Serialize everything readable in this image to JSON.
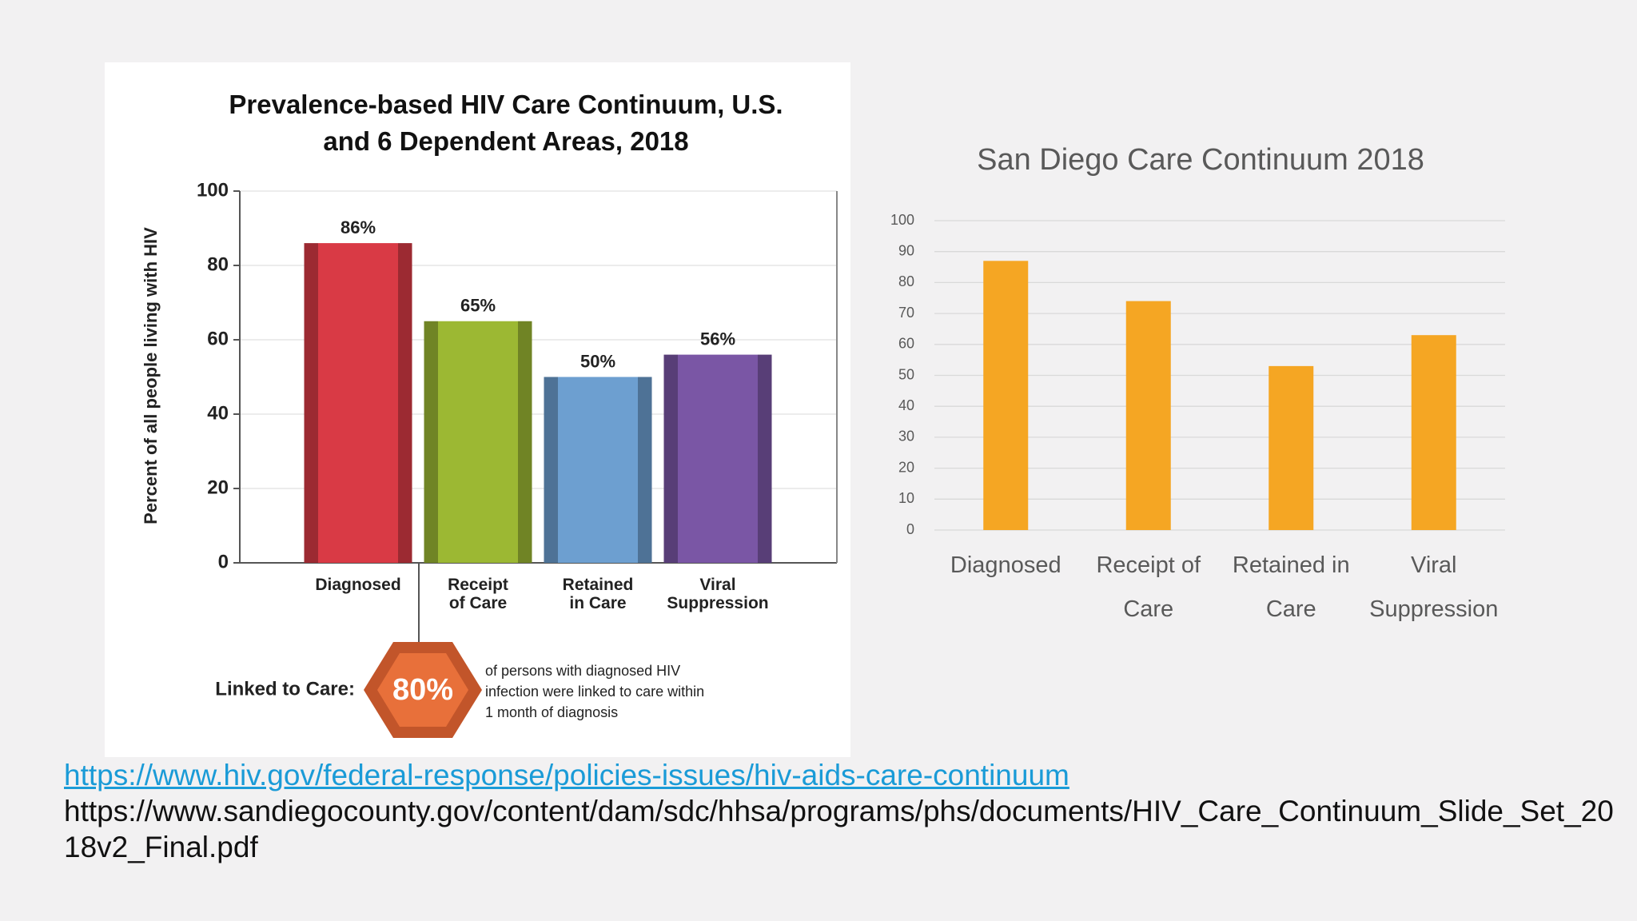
{
  "chart_data": [
    {
      "type": "bar",
      "title": "Prevalence-based HIV Care Continuum, U.S. and 6 Dependent Areas, 2018",
      "ylabel": "Percent of all people living with HIV",
      "categories": [
        "Diagnosed",
        "Receipt of Care",
        "Retained in Care",
        "Viral Suppression"
      ],
      "values": [
        86,
        65,
        50,
        56
      ],
      "value_labels": [
        "86%",
        "65%",
        "50%",
        "56%"
      ],
      "colors": [
        "#d93a45",
        "#9cb833",
        "#6d9fd0",
        "#7a56a5"
      ],
      "ylim": [
        0,
        100
      ],
      "yticks": [
        0,
        20,
        40,
        60,
        80,
        100
      ],
      "grid": true,
      "annotation": {
        "label": "Linked to Care:",
        "value": "80%",
        "text": "of persons with diagnosed HIV infection were linked to care within 1 month of diagnosis"
      }
    },
    {
      "type": "bar",
      "title": "San Diego Care Continuum 2018",
      "categories": [
        "Diagnosed",
        "Receipt of Care",
        "Retained in Care",
        "Viral Suppression"
      ],
      "values": [
        87,
        74,
        53,
        63
      ],
      "color": "#f5a623",
      "ylim": [
        0,
        100
      ],
      "yticks": [
        0,
        10,
        20,
        30,
        40,
        50,
        60,
        70,
        80,
        90,
        100
      ],
      "grid": true
    }
  ],
  "links": [
    "https://www.hiv.gov/federal-response/policies-issues/hiv-aids-care-continuum",
    "https://www.sandiegocounty.gov/content/dam/sdc/hhsa/programs/phs/documents/HIV_Care_Continuum_Slide_Set_2018v2_Final.pdf"
  ]
}
